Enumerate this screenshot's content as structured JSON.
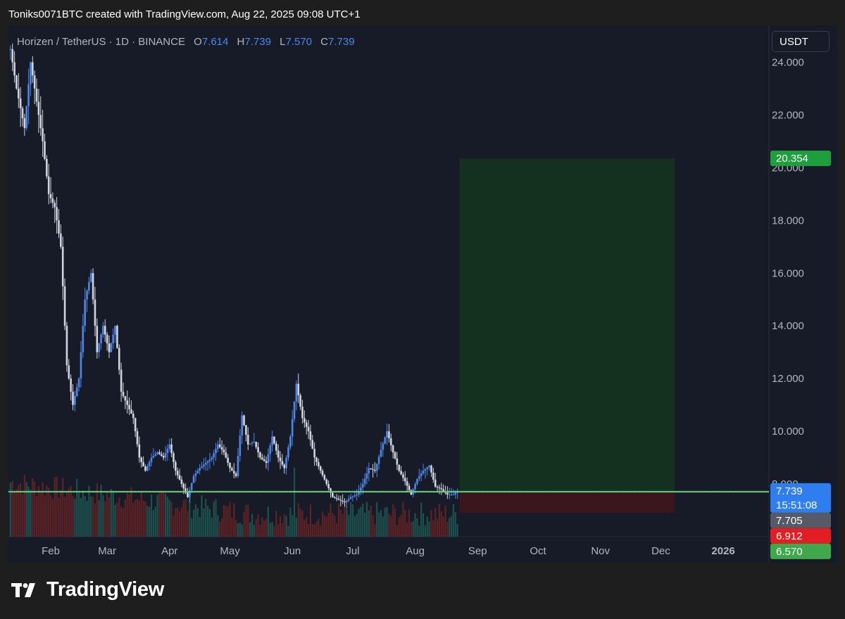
{
  "caption": "Toniks0071BTC created with TradingView.com, Aug 22, 2025 09:08 UTC+1",
  "legend": {
    "symbol": "Horizen / TetherUS · 1D · BINANCE",
    "o_label": "O",
    "o_value": "7.614",
    "h_label": "H",
    "h_value": "7.739",
    "l_label": "L",
    "l_value": "7.570",
    "c_label": "C",
    "c_value": "7.739"
  },
  "currency": "USDT",
  "brand": "TradingView",
  "colors": {
    "background": "#161b27",
    "up": "#4f86e8",
    "down": "#d1d4dc",
    "profit_zone": "#14301f",
    "loss_zone": "#3a161d",
    "support_line": "#6fcf6f",
    "volume_up": "#1f5a55",
    "volume_down": "#6b2326"
  },
  "chart_data": {
    "type": "candlestick",
    "title": "Horizen / TetherUS · 1D · BINANCE",
    "ylim": [
      6.0,
      25.4
    ],
    "y_ticks": [
      "24.000",
      "22.000",
      "20.000",
      "18.000",
      "16.000",
      "14.000",
      "12.000",
      "10.000",
      "8.000"
    ],
    "y_tick_values": [
      24,
      22,
      20,
      18,
      16,
      14,
      12,
      10,
      8
    ],
    "x_ticks": [
      "Feb",
      "Mar",
      "Apr",
      "May",
      "Jun",
      "Jul",
      "Aug",
      "Sep",
      "Oct",
      "Nov",
      "Dec",
      "2026"
    ],
    "x_tick_dates": [
      "2025-02-01",
      "2025-03-01",
      "2025-04-01",
      "2025-05-01",
      "2025-06-01",
      "2025-07-01",
      "2025-08-01",
      "2025-09-01",
      "2025-10-01",
      "2025-11-01",
      "2025-12-01",
      "2026-01-01"
    ],
    "xlim": [
      "2025-01-11",
      "2026-01-23"
    ],
    "grid": false,
    "closes": {
      "x": [
        "2025-01-12",
        "2025-01-15",
        "2025-01-19",
        "2025-01-22",
        "2025-01-25",
        "2025-01-28",
        "2025-01-31",
        "2025-02-03",
        "2025-02-06",
        "2025-02-09",
        "2025-02-12",
        "2025-02-15",
        "2025-02-18",
        "2025-02-21",
        "2025-02-24",
        "2025-02-27",
        "2025-03-02",
        "2025-03-05",
        "2025-03-08",
        "2025-03-11",
        "2025-03-14",
        "2025-03-17",
        "2025-03-20",
        "2025-03-23",
        "2025-03-26",
        "2025-03-29",
        "2025-04-01",
        "2025-04-04",
        "2025-04-07",
        "2025-04-10",
        "2025-04-13",
        "2025-04-16",
        "2025-04-19",
        "2025-04-22",
        "2025-04-25",
        "2025-04-28",
        "2025-05-01",
        "2025-05-04",
        "2025-05-07",
        "2025-05-10",
        "2025-05-13",
        "2025-05-16",
        "2025-05-19",
        "2025-05-22",
        "2025-05-25",
        "2025-05-28",
        "2025-05-31",
        "2025-06-03",
        "2025-06-06",
        "2025-06-09",
        "2025-06-12",
        "2025-06-15",
        "2025-06-18",
        "2025-06-21",
        "2025-06-24",
        "2025-06-27",
        "2025-06-30",
        "2025-07-03",
        "2025-07-06",
        "2025-07-09",
        "2025-07-12",
        "2025-07-15",
        "2025-07-18",
        "2025-07-21",
        "2025-07-24",
        "2025-07-27",
        "2025-07-30",
        "2025-08-02",
        "2025-08-05",
        "2025-08-08",
        "2025-08-11",
        "2025-08-14",
        "2025-08-17",
        "2025-08-20",
        "2025-08-22"
      ],
      "y": [
        24.5,
        23.0,
        21.5,
        24.0,
        22.5,
        21.0,
        19.0,
        18.5,
        17.0,
        12.5,
        11.0,
        12.0,
        15.0,
        16.0,
        13.0,
        14.0,
        13.0,
        14.0,
        11.5,
        11.0,
        10.5,
        9.0,
        8.5,
        9.0,
        9.2,
        9.0,
        9.5,
        8.5,
        8.0,
        7.5,
        8.3,
        8.6,
        8.8,
        9.0,
        9.5,
        9.2,
        8.6,
        8.3,
        10.6,
        9.5,
        9.6,
        9.0,
        8.8,
        9.8,
        9.0,
        8.6,
        9.8,
        11.8,
        10.5,
        10.0,
        9.0,
        8.5,
        8.0,
        7.5,
        7.4,
        7.3,
        7.5,
        7.6,
        8.0,
        8.6,
        8.5,
        9.3,
        10.0,
        9.2,
        8.5,
        8.1,
        7.6,
        8.2,
        8.5,
        8.7,
        7.9,
        7.8,
        7.6,
        7.6,
        7.739
      ]
    },
    "last_price": 7.739,
    "last_price_label": "7.739",
    "countdown_label": "15:51:08",
    "position_tool": {
      "entry": 7.705,
      "target": 20.354,
      "stop": 6.912,
      "start_date": "2025-08-23",
      "end_date": "2025-12-08"
    },
    "support_level": 7.705,
    "axis_labels": [
      {
        "value": 20.354,
        "text": "20.354",
        "color": "#1e9e3c"
      },
      {
        "value": 7.739,
        "text": "7.739",
        "color": "#2f7ef0"
      },
      {
        "value": 7.705,
        "text": "7.705",
        "color": "#555a66"
      },
      {
        "value": 6.912,
        "text": "6.912",
        "color": "#e21d23"
      },
      {
        "value": 6.57,
        "text": "6.570",
        "color": "#3ea84b"
      }
    ],
    "volume": {
      "description_values": "relative daily volume, 0-1 scale",
      "max_shown": 1.0
    }
  }
}
